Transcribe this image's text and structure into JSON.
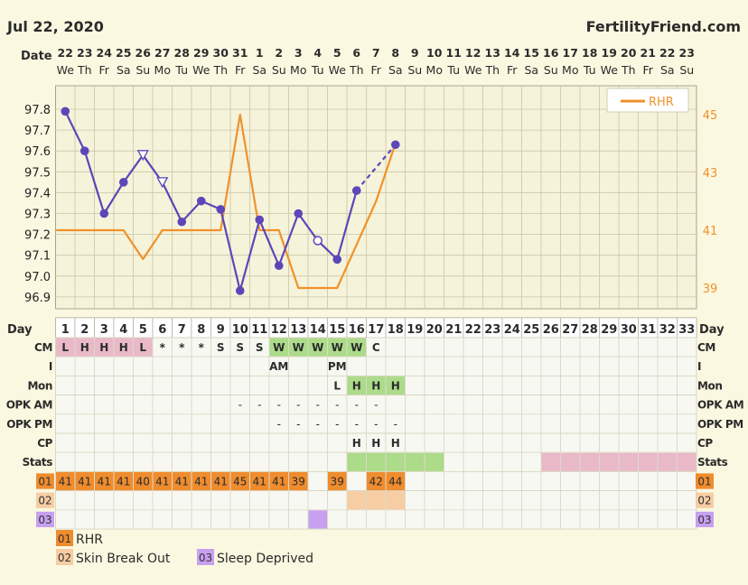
{
  "header": {
    "date": "Jul 22, 2020",
    "site": "FertilityFriend.com",
    "date_row_label": "Date",
    "day_row_label": "Day"
  },
  "colors": {
    "bbt": "#5b47b8",
    "rhr": "#ef922a",
    "grid_bg": "#f6f3db",
    "grid_line": "#c9c5a3",
    "row_bg": "#f8f8f2",
    "cm_pink": "#e9b9c8",
    "cm_green": "#acdb8a",
    "tag01": "#ef8c2e",
    "tag02": "#f7cda4",
    "tag03": "#c7a0f0"
  },
  "chart_data": {
    "type": "line",
    "dates": [
      "22",
      "23",
      "24",
      "25",
      "26",
      "27",
      "28",
      "29",
      "30",
      "31",
      "1",
      "2",
      "3",
      "4",
      "5",
      "6",
      "7",
      "8",
      "9",
      "10",
      "11",
      "12",
      "13",
      "14",
      "15",
      "16",
      "17",
      "18",
      "19",
      "20",
      "21",
      "22",
      "23"
    ],
    "weekdays": [
      "We",
      "Th",
      "Fr",
      "Sa",
      "Su",
      "Mo",
      "Tu",
      "We",
      "Th",
      "Fr",
      "Sa",
      "Su",
      "Mo",
      "Tu",
      "We",
      "Th",
      "Fr",
      "Sa",
      "Su",
      "Mo",
      "Tu",
      "We",
      "Th",
      "Fr",
      "Sa",
      "Su",
      "Mo",
      "Tu",
      "We",
      "Th",
      "Fr",
      "Sa",
      "Su"
    ],
    "cycle_days": [
      "1",
      "2",
      "3",
      "4",
      "5",
      "6",
      "7",
      "8",
      "9",
      "10",
      "11",
      "12",
      "13",
      "14",
      "15",
      "16",
      "17",
      "18",
      "19",
      "20",
      "21",
      "22",
      "23",
      "24",
      "25",
      "26",
      "27",
      "28",
      "29",
      "30",
      "31",
      "32",
      "33"
    ],
    "y_left_ticks": [
      "97.8",
      "97.7",
      "97.6",
      "97.5",
      "97.4",
      "97.3",
      "97.2",
      "97.1",
      "97.0",
      "96.9"
    ],
    "y_right_ticks": [
      "45",
      "43",
      "41",
      "39"
    ],
    "ylim_left": [
      96.85,
      97.85
    ],
    "ylim_right": [
      38.6,
      45.6
    ],
    "legend": "RHR",
    "bbt": [
      {
        "day": 1,
        "temp": 97.79,
        "marker": "filled"
      },
      {
        "day": 2,
        "temp": 97.6,
        "marker": "filled"
      },
      {
        "day": 3,
        "temp": 97.3,
        "marker": "filled"
      },
      {
        "day": 4,
        "temp": 97.45,
        "marker": "filled"
      },
      {
        "day": 5,
        "temp": 97.58,
        "marker": "triangle"
      },
      {
        "day": 6,
        "temp": 97.45,
        "marker": "triangle"
      },
      {
        "day": 7,
        "temp": 97.26,
        "marker": "filled"
      },
      {
        "day": 8,
        "temp": 97.36,
        "marker": "filled"
      },
      {
        "day": 9,
        "temp": 97.32,
        "marker": "filled"
      },
      {
        "day": 10,
        "temp": 96.93,
        "marker": "filled"
      },
      {
        "day": 11,
        "temp": 97.27,
        "marker": "filled"
      },
      {
        "day": 12,
        "temp": 97.05,
        "marker": "filled"
      },
      {
        "day": 13,
        "temp": 97.3,
        "marker": "filled"
      },
      {
        "day": 14,
        "temp": 97.17,
        "marker": "open"
      },
      {
        "day": 15,
        "temp": 97.08,
        "marker": "filled"
      },
      {
        "day": 16,
        "temp": 97.41,
        "marker": "filled"
      },
      {
        "day": 17,
        "temp": null,
        "marker": "none"
      },
      {
        "day": 18,
        "temp": 97.63,
        "marker": "filled"
      }
    ],
    "rhr": [
      {
        "day": 1,
        "value": 41
      },
      {
        "day": 2,
        "value": 41
      },
      {
        "day": 3,
        "value": 41
      },
      {
        "day": 4,
        "value": 41
      },
      {
        "day": 5,
        "value": 40
      },
      {
        "day": 6,
        "value": 41
      },
      {
        "day": 7,
        "value": 41
      },
      {
        "day": 8,
        "value": 41
      },
      {
        "day": 9,
        "value": 41
      },
      {
        "day": 10,
        "value": 45
      },
      {
        "day": 11,
        "value": 41
      },
      {
        "day": 12,
        "value": 41
      },
      {
        "day": 13,
        "value": 39
      },
      {
        "day": 14,
        "value": 39
      },
      {
        "day": 15,
        "value": 39
      },
      {
        "day": 16,
        "value": null
      },
      {
        "day": 17,
        "value": 42
      },
      {
        "day": 18,
        "value": 44
      }
    ]
  },
  "rows": {
    "labels": [
      "CM",
      "I",
      "Mon",
      "OPK AM",
      "OPK PM",
      "CP",
      "Stats",
      "01",
      "02",
      "03"
    ],
    "cm": [
      {
        "day": 1,
        "text": "L",
        "color": "pink"
      },
      {
        "day": 2,
        "text": "H",
        "color": "pink"
      },
      {
        "day": 3,
        "text": "H",
        "color": "pink"
      },
      {
        "day": 4,
        "text": "H",
        "color": "pink"
      },
      {
        "day": 5,
        "text": "L",
        "color": "pink"
      },
      {
        "day": 6,
        "text": "*",
        "color": ""
      },
      {
        "day": 7,
        "text": "*",
        "color": ""
      },
      {
        "day": 8,
        "text": "*",
        "color": ""
      },
      {
        "day": 9,
        "text": "S",
        "color": ""
      },
      {
        "day": 10,
        "text": "S",
        "color": ""
      },
      {
        "day": 11,
        "text": "S",
        "color": ""
      },
      {
        "day": 12,
        "text": "W",
        "color": "green"
      },
      {
        "day": 13,
        "text": "W",
        "color": "green"
      },
      {
        "day": 14,
        "text": "W",
        "color": "green"
      },
      {
        "day": 15,
        "text": "W",
        "color": "green"
      },
      {
        "day": 16,
        "text": "W",
        "color": "green"
      },
      {
        "day": 17,
        "text": "C",
        "color": ""
      }
    ],
    "i": [
      {
        "day": 12,
        "text": "AM"
      },
      {
        "day": 15,
        "text": "PM"
      }
    ],
    "mon": [
      {
        "day": 15,
        "text": "L",
        "color": ""
      },
      {
        "day": 16,
        "text": "H",
        "color": "green"
      },
      {
        "day": 17,
        "text": "H",
        "color": "green"
      },
      {
        "day": 18,
        "text": "H",
        "color": "green"
      }
    ],
    "opk_am": [
      {
        "day": 10,
        "text": "-"
      },
      {
        "day": 11,
        "text": "-"
      },
      {
        "day": 12,
        "text": "-"
      },
      {
        "day": 13,
        "text": "-"
      },
      {
        "day": 14,
        "text": "-"
      },
      {
        "day": 15,
        "text": "-"
      },
      {
        "day": 16,
        "text": "-"
      },
      {
        "day": 17,
        "text": "-"
      }
    ],
    "opk_pm": [
      {
        "day": 12,
        "text": "-"
      },
      {
        "day": 13,
        "text": "-"
      },
      {
        "day": 14,
        "text": "-"
      },
      {
        "day": 15,
        "text": "-"
      },
      {
        "day": 16,
        "text": "-"
      },
      {
        "day": 17,
        "text": "-"
      },
      {
        "day": 18,
        "text": "-"
      }
    ],
    "cp": [
      {
        "day": 16,
        "text": "H"
      },
      {
        "day": 17,
        "text": "H"
      },
      {
        "day": 18,
        "text": "H"
      }
    ],
    "stats_green": [
      16,
      17,
      18,
      19,
      20
    ],
    "stats_pink": [
      26,
      27,
      28,
      29,
      30,
      31,
      32,
      33
    ],
    "tag01": [
      {
        "day": 1,
        "text": "41"
      },
      {
        "day": 2,
        "text": "41"
      },
      {
        "day": 3,
        "text": "41"
      },
      {
        "day": 4,
        "text": "41"
      },
      {
        "day": 5,
        "text": "40"
      },
      {
        "day": 6,
        "text": "41"
      },
      {
        "day": 7,
        "text": "41"
      },
      {
        "day": 8,
        "text": "41"
      },
      {
        "day": 9,
        "text": "41"
      },
      {
        "day": 10,
        "text": "45"
      },
      {
        "day": 11,
        "text": "41"
      },
      {
        "day": 12,
        "text": "41"
      },
      {
        "day": 13,
        "text": "39"
      },
      {
        "day": 15,
        "text": "39"
      },
      {
        "day": 17,
        "text": "42"
      },
      {
        "day": 18,
        "text": "44"
      }
    ],
    "tag02": [
      16,
      17,
      18
    ],
    "tag03": [
      14
    ]
  },
  "tags_legend": [
    {
      "code": "01",
      "label": "RHR"
    },
    {
      "code": "02",
      "label": "Skin Break Out"
    },
    {
      "code": "03",
      "label": "Sleep Deprived"
    }
  ]
}
